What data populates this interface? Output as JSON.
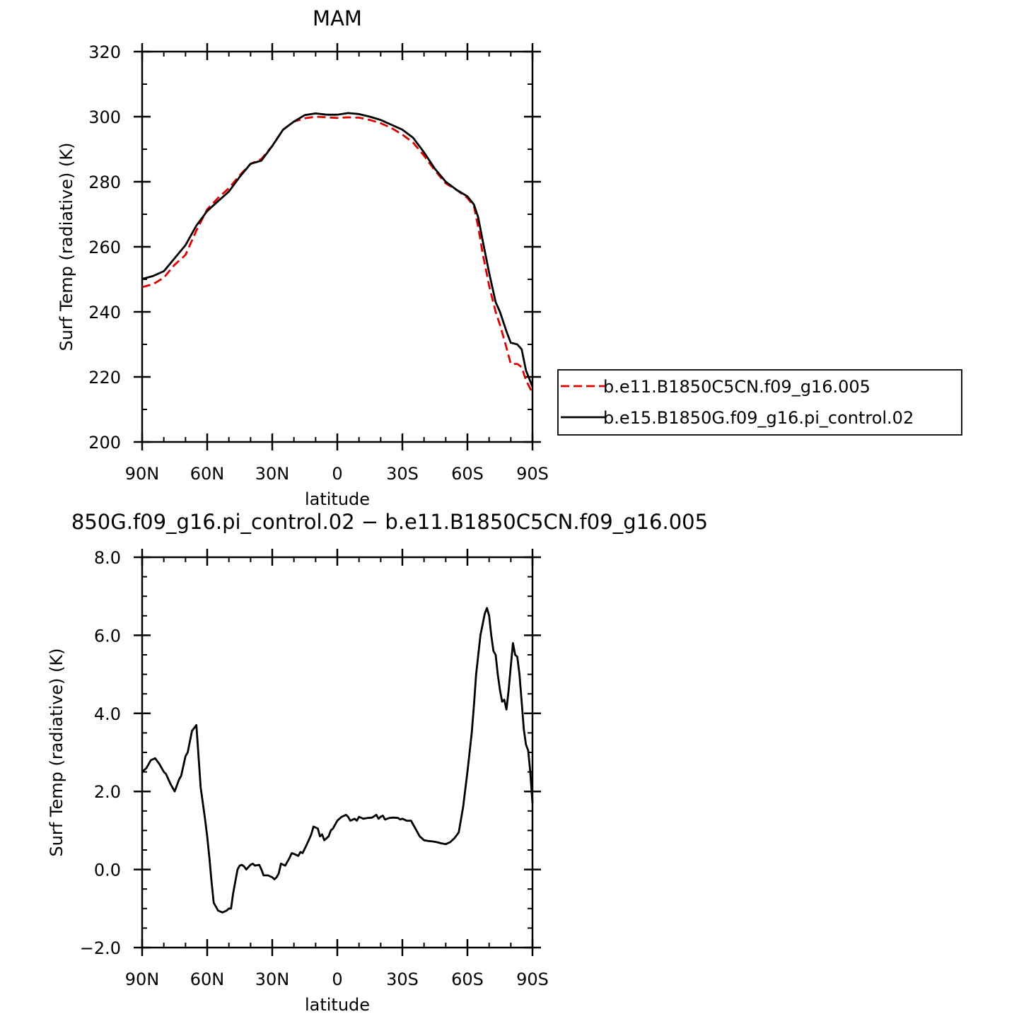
{
  "chart_data": [
    {
      "type": "line",
      "title": "MAM",
      "xlabel": "latitude",
      "ylabel": "Surf Temp (radiative) (K)",
      "xlim": [
        90,
        -90
      ],
      "ylim": [
        200,
        320
      ],
      "yticks": [
        200,
        220,
        240,
        260,
        280,
        300,
        320
      ],
      "ytick_labels": [
        "200",
        "220",
        "240",
        "260",
        "280",
        "300",
        "320"
      ],
      "xticks": [
        90,
        60,
        30,
        0,
        -30,
        -60,
        -90
      ],
      "xtick_labels": [
        "90N",
        "60N",
        "30N",
        "0",
        "30S",
        "60S",
        "90S"
      ],
      "legend": {
        "position": "right",
        "entries": [
          "b.e11.B1850C5CN.f09_g16.005",
          "b.e15.B1850G.f09_g16.pi_control.02"
        ]
      },
      "x": [
        90,
        85,
        80,
        75,
        70,
        65,
        60,
        55,
        50,
        45,
        40,
        35,
        30,
        25,
        20,
        15,
        10,
        5,
        0,
        -5,
        -10,
        -15,
        -20,
        -25,
        -30,
        -35,
        -40,
        -45,
        -50,
        -55,
        -60,
        -63,
        -65,
        -67,
        -70,
        -73,
        -75,
        -78,
        -80,
        -83,
        -85,
        -87,
        -90
      ],
      "series": [
        {
          "name": "b.e11.B1850C5CN.f09_g16.005",
          "color": "#e00000",
          "dash": "dashed",
          "values": [
            247.6,
            248.5,
            250.5,
            254.5,
            257.5,
            265,
            271.5,
            275,
            278,
            282,
            285.5,
            287,
            291,
            296,
            298.5,
            299.5,
            300,
            299.8,
            299.6,
            299.8,
            299.7,
            299,
            298,
            296.5,
            294.5,
            292,
            288,
            283.5,
            279.5,
            277.5,
            275,
            272.5,
            266,
            258,
            248,
            240,
            236,
            229,
            224,
            224,
            223,
            219,
            215
          ]
        },
        {
          "name": "b.e15.B1850G.f09_g16.pi_control.02",
          "color": "#000000",
          "dash": "solid",
          "values": [
            250.1,
            251,
            252.5,
            256.5,
            260.5,
            266.5,
            271,
            274,
            277,
            281.5,
            285.5,
            286.5,
            291,
            296,
            298.5,
            300.5,
            301,
            300.6,
            300.6,
            301.1,
            300.8,
            300,
            299,
            297.5,
            296,
            293.5,
            289,
            284,
            280,
            277.5,
            275.5,
            273,
            269,
            262,
            252,
            243,
            240,
            234,
            230.5,
            230,
            228.5,
            222,
            217
          ]
        }
      ]
    },
    {
      "type": "line",
      "title": "850G.f09_g16.pi_control.02 − b.e11.B1850C5CN.f09_g16.005",
      "xlabel": "latitude",
      "ylabel": "Surf Temp (radiative) (K)",
      "xlim": [
        90,
        -90
      ],
      "ylim": [
        -2,
        8
      ],
      "yticks": [
        -2,
        0,
        2,
        4,
        6,
        8
      ],
      "ytick_labels": [
        "−2.0",
        "0.0",
        "2.0",
        "4.0",
        "6.0",
        "8.0"
      ],
      "xticks": [
        90,
        60,
        30,
        0,
        -30,
        -60,
        -90
      ],
      "xtick_labels": [
        "90N",
        "60N",
        "30N",
        "0",
        "30S",
        "60S",
        "90S"
      ],
      "x": [
        90,
        88,
        86,
        84,
        82,
        80,
        79,
        77,
        75,
        73,
        72,
        70,
        69,
        67,
        65,
        63,
        61,
        60,
        59,
        58,
        57,
        55,
        53,
        51,
        50,
        49,
        48,
        46,
        45,
        44,
        43,
        42,
        40,
        39,
        38,
        36,
        35,
        34,
        32,
        30,
        29,
        28,
        27,
        26,
        24,
        22,
        21,
        20,
        18,
        17,
        16,
        14,
        12,
        11,
        9,
        8,
        7,
        6,
        5,
        4,
        3,
        2,
        1,
        0,
        -2,
        -4,
        -5,
        -6,
        -8,
        -9,
        -10,
        -12,
        -14,
        -16,
        -18,
        -19,
        -20,
        -21,
        -22,
        -24,
        -26,
        -28,
        -29,
        -30,
        -32,
        -34,
        -35,
        -36,
        -38,
        -40,
        -42,
        -44,
        -46,
        -48,
        -50,
        -52,
        -54,
        -56,
        -58,
        -60,
        -62,
        -63,
        -64,
        -66,
        -68,
        -69,
        -70,
        -71,
        -72,
        -73,
        -74,
        -75,
        -76,
        -77,
        -78,
        -79,
        -80,
        -81,
        -82,
        -83,
        -84,
        -85,
        -86,
        -87,
        -88,
        -89,
        -90
      ],
      "series": [
        {
          "name": "",
          "color": "#000000",
          "dash": "solid",
          "values": [
            2.5,
            2.6,
            2.8,
            2.85,
            2.7,
            2.5,
            2.45,
            2.2,
            2.0,
            2.3,
            2.4,
            2.9,
            3.0,
            3.55,
            3.7,
            2.1,
            1.3,
            0.85,
            0.3,
            -0.3,
            -0.85,
            -1.05,
            -1.1,
            -1.05,
            -1.0,
            -1.0,
            -0.6,
            0.0,
            0.1,
            0.12,
            0.08,
            0.0,
            0.12,
            0.15,
            0.1,
            0.12,
            0.0,
            -0.15,
            -0.15,
            -0.2,
            -0.25,
            -0.2,
            -0.1,
            0.15,
            0.1,
            0.3,
            0.42,
            0.4,
            0.35,
            0.45,
            0.42,
            0.65,
            0.9,
            1.1,
            1.05,
            0.85,
            0.9,
            0.75,
            0.8,
            0.85,
            1.0,
            1.05,
            1.15,
            1.25,
            1.35,
            1.4,
            1.35,
            1.25,
            1.3,
            1.25,
            1.35,
            1.3,
            1.32,
            1.33,
            1.4,
            1.3,
            1.35,
            1.38,
            1.28,
            1.32,
            1.33,
            1.32,
            1.28,
            1.3,
            1.25,
            1.25,
            1.15,
            1.05,
            0.85,
            0.75,
            0.73,
            0.72,
            0.7,
            0.67,
            0.65,
            0.7,
            0.8,
            0.95,
            1.6,
            2.5,
            3.5,
            4.2,
            5.0,
            6.0,
            6.55,
            6.7,
            6.5,
            6.0,
            5.6,
            5.5,
            5.0,
            4.6,
            4.3,
            4.35,
            4.1,
            4.6,
            5.2,
            5.8,
            5.5,
            5.45,
            5.0,
            4.3,
            3.6,
            3.2,
            3.05,
            2.5,
            1.7
          ]
        }
      ]
    }
  ]
}
